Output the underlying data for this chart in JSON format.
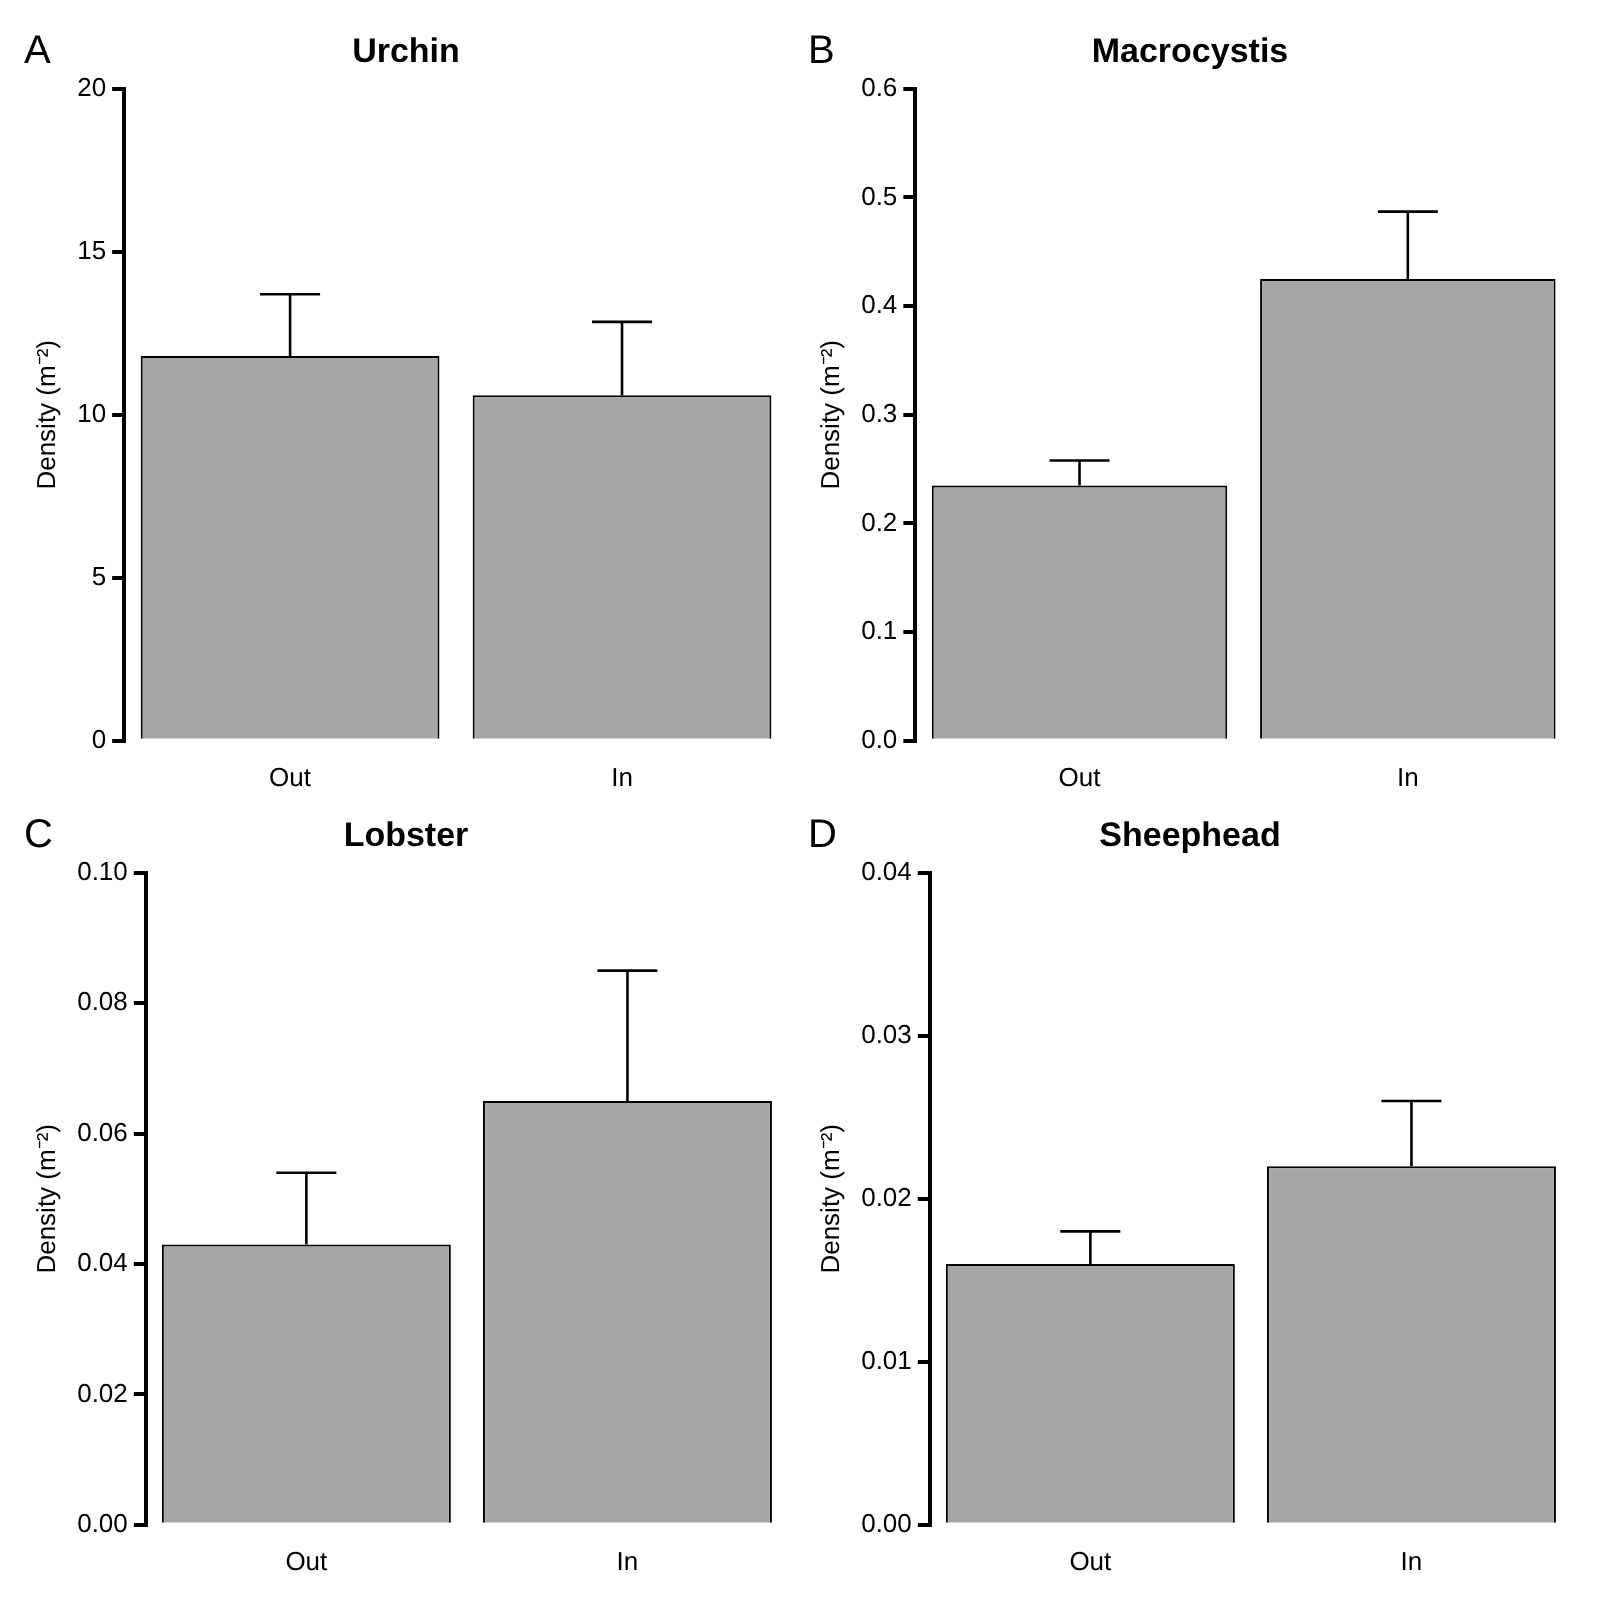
{
  "chart_data": [
    {
      "type": "bar",
      "title": "Urchin",
      "ylabel": "Density (m⁻²)",
      "categories": [
        "Out",
        "In"
      ],
      "values": [
        11.8,
        10.6
      ],
      "errors": [
        [
          11.8,
          13.7
        ],
        [
          10.6,
          12.85
        ]
      ],
      "color": "#a6a6a6",
      "ylim": [
        0,
        20
      ],
      "yticks": [
        0,
        5,
        10,
        15,
        20
      ],
      "annotations": [
        "A"
      ]
    },
    {
      "type": "bar",
      "title": "Macrocystis",
      "ylabel": "Density (m⁻²)",
      "categories": [
        "Out",
        "In"
      ],
      "values": [
        0.235,
        0.425
      ],
      "errors": [
        [
          0.235,
          0.258
        ],
        [
          0.425,
          0.487
        ]
      ],
      "color": "#a6a6a6",
      "ylim": [
        0,
        0.6
      ],
      "yticks": [
        {
          "value": 0,
          "label": "0.0"
        },
        0.1,
        0.2,
        0.3,
        0.4,
        0.5,
        0.6
      ],
      "annotations": [
        "B"
      ]
    },
    {
      "type": "bar",
      "title": "Lobster",
      "ylabel": "Density (m⁻²)",
      "categories": [
        "Out",
        "In"
      ],
      "values": [
        0.043,
        0.065
      ],
      "errors": [
        [
          0.043,
          0.054
        ],
        [
          0.065,
          0.085
        ]
      ],
      "color": "#a6a6a6",
      "ylim": [
        0,
        0.1
      ],
      "yticks": [
        {
          "value": 0,
          "label": "0.00"
        },
        {
          "value": 0.02,
          "label": "0.02"
        },
        {
          "value": 0.04,
          "label": "0.04"
        },
        {
          "value": 0.06,
          "label": "0.06"
        },
        {
          "value": 0.08,
          "label": "0.08"
        },
        {
          "value": 0.1,
          "label": "0.10"
        }
      ],
      "annotations": [
        "C"
      ]
    },
    {
      "type": "bar",
      "title": "Sheephead",
      "ylabel": "Density (m⁻²)",
      "categories": [
        "Out",
        "In"
      ],
      "values": [
        0.016,
        0.022
      ],
      "errors": [
        [
          0.016,
          0.018
        ],
        [
          0.022,
          0.026
        ]
      ],
      "color": "#a6a6a6",
      "ylim": [
        0,
        0.04
      ],
      "yticks": [
        {
          "value": 0,
          "label": "0.00"
        },
        {
          "value": 0.01,
          "label": "0.01"
        },
        {
          "value": 0.02,
          "label": "0.02"
        },
        {
          "value": 0.03,
          "label": "0.03"
        },
        {
          "value": 0.04,
          "label": "0.04"
        }
      ],
      "annotations": [
        "D"
      ]
    }
  ]
}
